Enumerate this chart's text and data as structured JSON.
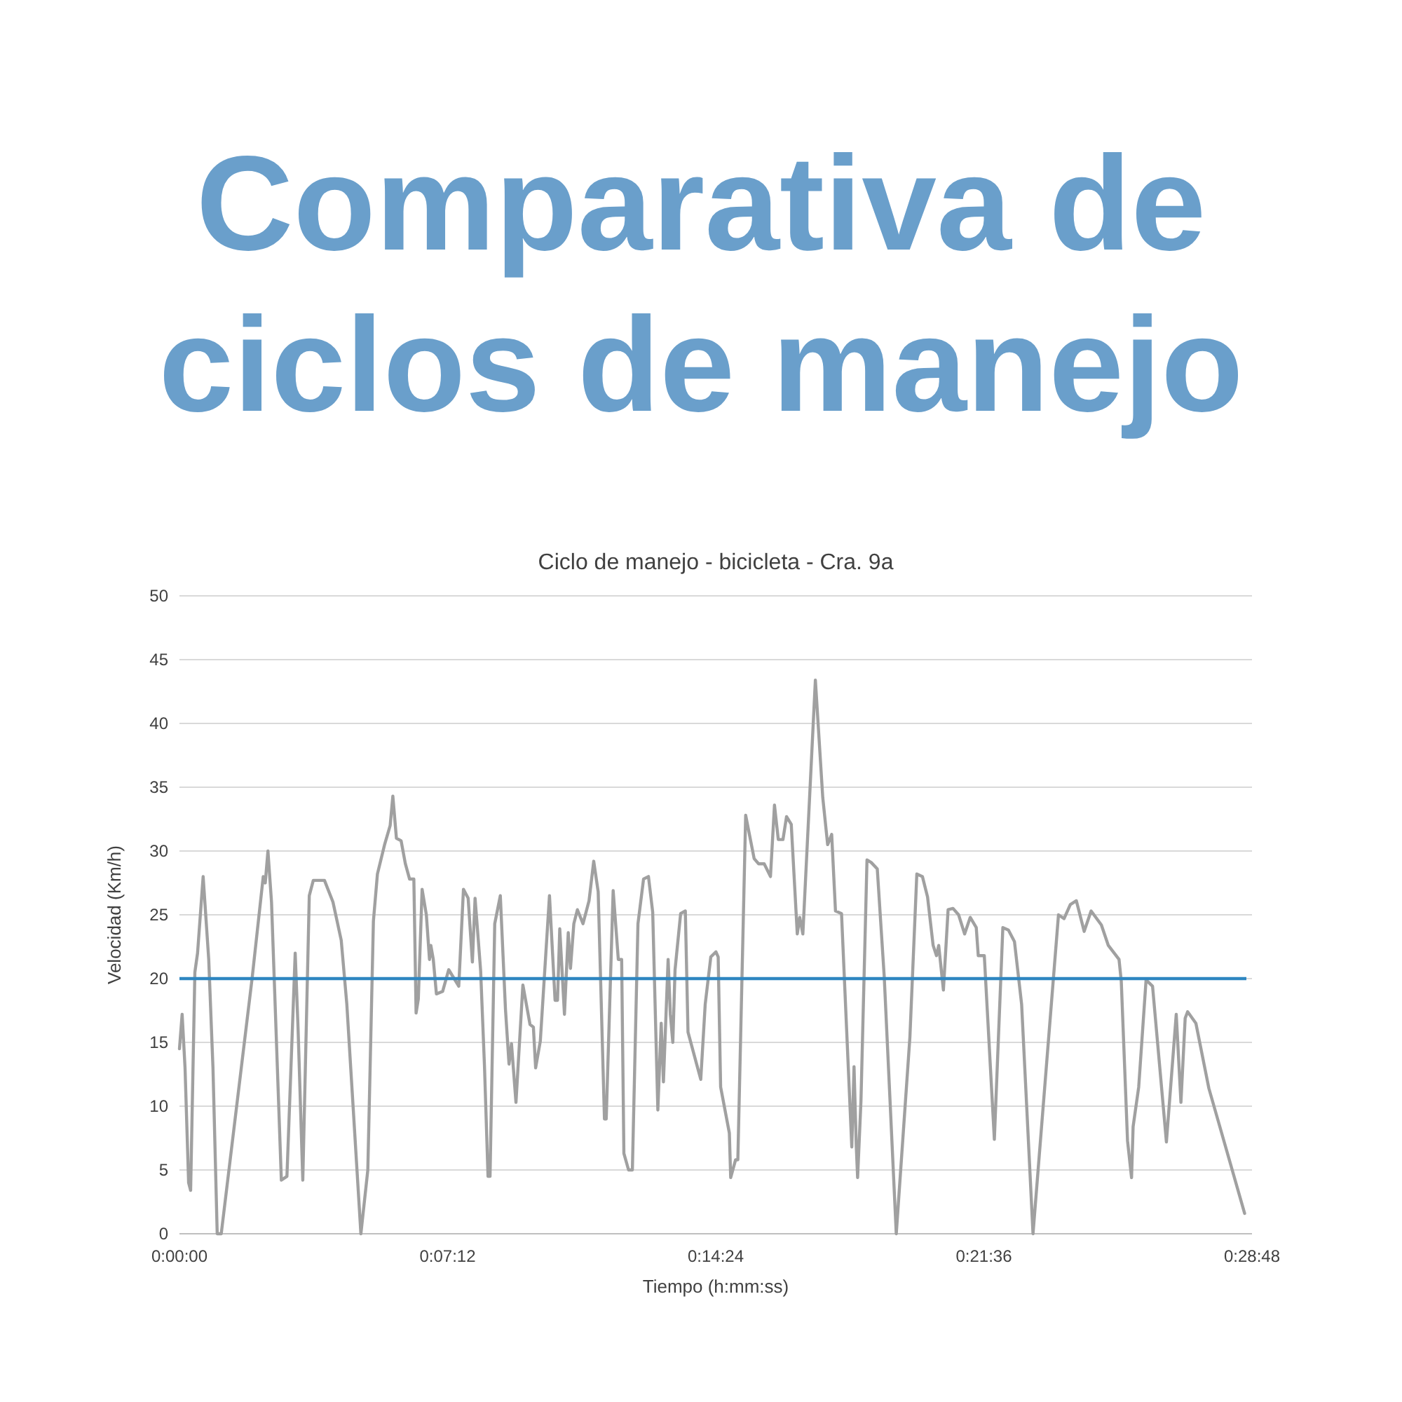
{
  "chart_data": {
    "type": "line",
    "title": "Comparativa de ciclos de manejo",
    "subtitle": "Ciclo de manejo - bicicleta - Cra. 9a",
    "xlabel": "Tiempo (h:mm:ss)",
    "ylabel": "Velocidad (Km/h)",
    "xlim": [
      0,
      0.48
    ],
    "xticks": [
      {
        "value": 0,
        "label": "0:00:00"
      },
      {
        "value": 0.12,
        "label": "0:07:12"
      },
      {
        "value": 0.24,
        "label": "0:14:24"
      },
      {
        "value": 0.36,
        "label": "0:21:36"
      },
      {
        "value": 0.48,
        "label": "0:28:48"
      }
    ],
    "ylim": [
      0,
      50
    ],
    "yticks": [
      0,
      5,
      10,
      15,
      20,
      25,
      30,
      35,
      40,
      45,
      50
    ],
    "grid": "y",
    "marker": "none",
    "line_style": "solid",
    "ref_lines": [
      {
        "axis": "y",
        "value": 20,
        "color": "#2e86c1"
      }
    ],
    "series": [
      {
        "color": "#a0a0a0",
        "x": [
          0,
          0.0012,
          0.0025,
          0.0041,
          0.005,
          0.0069,
          0.0081,
          0.0106,
          0.0131,
          0.015,
          0.0169,
          0.0187,
          0.0325,
          0.0375,
          0.0384,
          0.0396,
          0.0412,
          0.0456,
          0.0481,
          0.0518,
          0.0531,
          0.0552,
          0.0581,
          0.0599,
          0.0649,
          0.0687,
          0.0724,
          0.0749,
          0.0812,
          0.0843,
          0.0868,
          0.0886,
          0.0918,
          0.0943,
          0.0955,
          0.0971,
          0.0992,
          0.1011,
          0.103,
          0.1049,
          0.1059,
          0.1069,
          0.1086,
          0.1105,
          0.1119,
          0.1125,
          0.1136,
          0.115,
          0.1178,
          0.1205,
          0.125,
          0.1271,
          0.1292,
          0.1311,
          0.1323,
          0.1348,
          0.1365,
          0.1381,
          0.139,
          0.1411,
          0.1436,
          0.1459,
          0.1475,
          0.1486,
          0.1506,
          0.1537,
          0.1569,
          0.1584,
          0.1594,
          0.1615,
          0.1656,
          0.1681,
          0.1692,
          0.1702,
          0.1723,
          0.174,
          0.175,
          0.1765,
          0.1781,
          0.1806,
          0.1833,
          0.1854,
          0.1874,
          0.1902,
          0.191,
          0.1941,
          0.1964,
          0.1979,
          0.1989,
          0.201,
          0.2027,
          0.2052,
          0.2077,
          0.2099,
          0.2118,
          0.2141,
          0.2156,
          0.2166,
          0.2187,
          0.2197,
          0.2208,
          0.2218,
          0.2243,
          0.2264,
          0.2276,
          0.2333,
          0.2353,
          0.2378,
          0.2401,
          0.2411,
          0.2422,
          0.2461,
          0.2467,
          0.2489,
          0.2499,
          0.2534,
          0.2572,
          0.2592,
          0.2617,
          0.2645,
          0.2663,
          0.268,
          0.2701,
          0.2717,
          0.2738,
          0.2765,
          0.2776,
          0.279,
          0.2846,
          0.2879,
          0.2901,
          0.2919,
          0.2936,
          0.2963,
          0.3009,
          0.3019,
          0.3029,
          0.3035,
          0.305,
          0.3077,
          0.3096,
          0.3123,
          0.3154,
          0.3208,
          0.3269,
          0.33,
          0.3325,
          0.3348,
          0.3373,
          0.3388,
          0.3398,
          0.3419,
          0.344,
          0.3462,
          0.3487,
          0.3514,
          0.3539,
          0.3566,
          0.3575,
          0.3602,
          0.3647,
          0.3685,
          0.371,
          0.3737,
          0.3769,
          0.382,
          0.3934,
          0.3959,
          0.3987,
          0.4014,
          0.4049,
          0.408,
          0.4126,
          0.4157,
          0.4205,
          0.4215,
          0.4243,
          0.4261,
          0.4268,
          0.4293,
          0.4326,
          0.4355,
          0.4417,
          0.4461,
          0.4482,
          0.4501,
          0.4512,
          0.4549,
          0.4607,
          0.4767
        ],
        "values": [
          14.5,
          17.2,
          13,
          4,
          3.4,
          20.5,
          22,
          28,
          21.5,
          13,
          0,
          0,
          20,
          28,
          27.5,
          30,
          26,
          4.2,
          4.5,
          22,
          16,
          4.2,
          26.5,
          27.7,
          27.7,
          26,
          23,
          18,
          0,
          5,
          24.5,
          28.2,
          30.5,
          32,
          34.3,
          31,
          30.8,
          29,
          27.8,
          27.8,
          17.3,
          18.4,
          27,
          25,
          21.5,
          22.6,
          21.5,
          18.8,
          19,
          20.7,
          19.4,
          27,
          26.3,
          21.3,
          26.3,
          20.6,
          13.2,
          4.5,
          4.5,
          24.3,
          26.5,
          17.6,
          13.3,
          14.9,
          10.3,
          19.5,
          16.4,
          16.2,
          13,
          15.1,
          26.5,
          18.3,
          18.3,
          23.9,
          17.2,
          23.6,
          20.8,
          24.3,
          25.4,
          24.3,
          26.1,
          29.2,
          26.8,
          9,
          9,
          26.9,
          21.5,
          21.5,
          6.3,
          5,
          5,
          24.3,
          27.8,
          28,
          25.2,
          9.7,
          16.5,
          11.9,
          21.5,
          17.2,
          15,
          20.7,
          25.1,
          25.3,
          15.8,
          12.1,
          18,
          21.7,
          22.1,
          21.7,
          11.5,
          7.9,
          4.4,
          5.8,
          5.8,
          32.8,
          29.4,
          29,
          29,
          28,
          33.6,
          30.9,
          30.9,
          32.7,
          32.1,
          23.5,
          24.8,
          23.5,
          43.4,
          34.2,
          30.5,
          31.3,
          25.3,
          25.1,
          6.8,
          13.1,
          6.9,
          4.4,
          10.4,
          29.3,
          29.1,
          28.6,
          20.2,
          0,
          15.4,
          28.2,
          28,
          26.4,
          22.6,
          21.8,
          22.6,
          19.1,
          25.4,
          25.5,
          25,
          23.5,
          24.8,
          24,
          21.8,
          21.8,
          7.4,
          24,
          23.8,
          22.9,
          18,
          0,
          25,
          24.7,
          25.8,
          26.1,
          23.7,
          25.3,
          24.2,
          22.6,
          21.5,
          19.8,
          7.3,
          4.4,
          8.4,
          11.5,
          19.9,
          19.4,
          7.2,
          17.2,
          10.3,
          16.9,
          17.4,
          16.5,
          11.4,
          1.6
        ]
      }
    ]
  }
}
